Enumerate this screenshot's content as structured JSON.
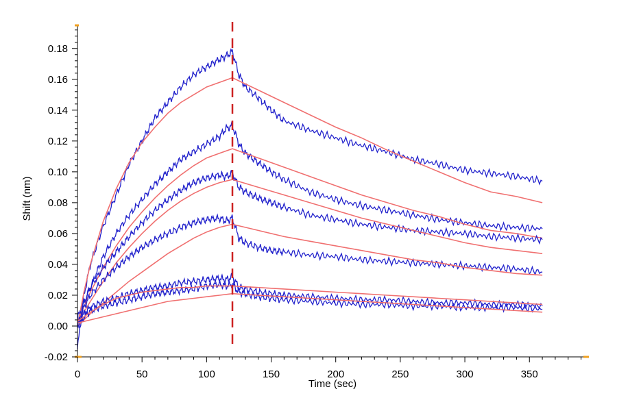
{
  "chart_data": {
    "type": "line",
    "title": "",
    "xlabel": "Time (sec)",
    "ylabel": "Shift (nm)",
    "xlim": [
      0,
      395
    ],
    "ylim": [
      -0.02,
      0.195
    ],
    "x_ticks": [
      0,
      50,
      100,
      150,
      200,
      250,
      300,
      350
    ],
    "y_ticks": [
      -0.02,
      0.0,
      0.02,
      0.04,
      0.06,
      0.08,
      0.1,
      0.12,
      0.14,
      0.16,
      0.18
    ],
    "x_tick_labels": [
      "0",
      "50",
      "100",
      "150",
      "200",
      "250",
      "300",
      "350"
    ],
    "y_tick_labels": [
      "-0.02",
      "0.00",
      "0.02",
      "0.04",
      "0.06",
      "0.08",
      "0.10",
      "0.12",
      "0.14",
      "0.16",
      "0.18"
    ],
    "grid": false,
    "association_end_time": 120,
    "colors": {
      "measured": "#2222cc",
      "fit": "#f07070",
      "marker_line": "#cc2222",
      "axis_caps": "#f0a020"
    },
    "series": [
      {
        "kind": "measured",
        "x": [
          0,
          5,
          10,
          20,
          30,
          40,
          50,
          60,
          70,
          80,
          90,
          100,
          110,
          115,
          120,
          125,
          130,
          140,
          150,
          160,
          180,
          200,
          220,
          240,
          260,
          280,
          300,
          320,
          340,
          360
        ],
        "y": [
          -0.015,
          0.02,
          0.04,
          0.065,
          0.085,
          0.105,
          0.12,
          0.135,
          0.145,
          0.155,
          0.163,
          0.168,
          0.173,
          0.175,
          0.178,
          0.163,
          0.155,
          0.148,
          0.14,
          0.133,
          0.127,
          0.122,
          0.117,
          0.113,
          0.108,
          0.105,
          0.101,
          0.099,
          0.097,
          0.094
        ]
      },
      {
        "kind": "fit",
        "x": [
          0,
          5,
          10,
          20,
          30,
          40,
          50,
          60,
          70,
          80,
          90,
          100,
          110,
          120,
          140,
          160,
          180,
          200,
          220,
          240,
          260,
          280,
          300,
          320,
          340,
          360
        ],
        "y": [
          0.0,
          0.022,
          0.04,
          0.068,
          0.089,
          0.106,
          0.119,
          0.129,
          0.138,
          0.145,
          0.15,
          0.155,
          0.158,
          0.161,
          0.153,
          0.145,
          0.137,
          0.129,
          0.122,
          0.114,
          0.107,
          0.1,
          0.093,
          0.087,
          0.084,
          0.08
        ]
      },
      {
        "kind": "measured",
        "x": [
          0,
          5,
          10,
          20,
          30,
          40,
          50,
          60,
          70,
          80,
          90,
          100,
          110,
          115,
          120,
          125,
          130,
          140,
          150,
          160,
          180,
          200,
          220,
          240,
          260,
          280,
          300,
          320,
          340,
          360
        ],
        "y": [
          0.0,
          0.015,
          0.025,
          0.045,
          0.06,
          0.072,
          0.082,
          0.092,
          0.1,
          0.108,
          0.113,
          0.118,
          0.123,
          0.128,
          0.13,
          0.118,
          0.112,
          0.106,
          0.1,
          0.095,
          0.087,
          0.082,
          0.078,
          0.075,
          0.072,
          0.069,
          0.067,
          0.065,
          0.064,
          0.063
        ]
      },
      {
        "kind": "fit",
        "x": [
          0,
          10,
          20,
          30,
          40,
          50,
          60,
          70,
          80,
          90,
          100,
          110,
          120,
          140,
          160,
          180,
          200,
          220,
          240,
          260,
          280,
          300,
          320,
          340,
          360
        ],
        "y": [
          0.003,
          0.022,
          0.038,
          0.052,
          0.064,
          0.074,
          0.083,
          0.091,
          0.098,
          0.104,
          0.109,
          0.112,
          0.115,
          0.109,
          0.103,
          0.097,
          0.091,
          0.085,
          0.08,
          0.075,
          0.071,
          0.066,
          0.062,
          0.06,
          0.057
        ]
      },
      {
        "kind": "measured",
        "x": [
          0,
          5,
          10,
          20,
          30,
          40,
          50,
          60,
          70,
          80,
          90,
          100,
          110,
          115,
          120,
          125,
          130,
          140,
          150,
          160,
          180,
          200,
          220,
          240,
          260,
          280,
          300,
          320,
          340,
          360
        ],
        "y": [
          0.005,
          0.015,
          0.025,
          0.038,
          0.048,
          0.058,
          0.067,
          0.075,
          0.082,
          0.088,
          0.093,
          0.096,
          0.098,
          0.097,
          0.099,
          0.09,
          0.087,
          0.083,
          0.08,
          0.077,
          0.072,
          0.069,
          0.066,
          0.064,
          0.062,
          0.061,
          0.06,
          0.058,
          0.057,
          0.056
        ]
      },
      {
        "kind": "fit",
        "x": [
          0,
          10,
          20,
          30,
          40,
          50,
          60,
          70,
          80,
          90,
          100,
          110,
          120,
          140,
          160,
          180,
          200,
          220,
          240,
          260,
          280,
          300,
          320,
          340,
          360
        ],
        "y": [
          0.002,
          0.016,
          0.029,
          0.041,
          0.051,
          0.06,
          0.068,
          0.075,
          0.081,
          0.086,
          0.09,
          0.093,
          0.095,
          0.09,
          0.085,
          0.08,
          0.075,
          0.07,
          0.066,
          0.062,
          0.058,
          0.054,
          0.051,
          0.049,
          0.047
        ]
      },
      {
        "kind": "measured",
        "x": [
          0,
          5,
          10,
          20,
          30,
          40,
          50,
          60,
          70,
          80,
          90,
          100,
          110,
          115,
          120,
          125,
          130,
          140,
          150,
          160,
          180,
          200,
          220,
          240,
          260,
          280,
          300,
          320,
          340,
          360
        ],
        "y": [
          0.0,
          0.012,
          0.02,
          0.03,
          0.038,
          0.045,
          0.051,
          0.056,
          0.06,
          0.064,
          0.067,
          0.069,
          0.07,
          0.068,
          0.07,
          0.057,
          0.054,
          0.051,
          0.049,
          0.048,
          0.046,
          0.045,
          0.043,
          0.042,
          0.041,
          0.04,
          0.039,
          0.038,
          0.037,
          0.035
        ]
      },
      {
        "kind": "fit",
        "x": [
          0,
          10,
          20,
          30,
          40,
          50,
          60,
          70,
          80,
          90,
          100,
          110,
          120,
          140,
          160,
          180,
          200,
          220,
          240,
          260,
          280,
          300,
          320,
          340,
          360
        ],
        "y": [
          0.0,
          0.008,
          0.015,
          0.022,
          0.029,
          0.035,
          0.041,
          0.047,
          0.052,
          0.057,
          0.061,
          0.064,
          0.066,
          0.062,
          0.058,
          0.055,
          0.052,
          0.049,
          0.046,
          0.043,
          0.041,
          0.038,
          0.036,
          0.034,
          0.033
        ]
      },
      {
        "kind": "measured",
        "x": [
          0,
          5,
          10,
          20,
          30,
          40,
          50,
          60,
          70,
          80,
          90,
          100,
          110,
          115,
          120,
          125,
          130,
          140,
          150,
          160,
          180,
          200,
          220,
          240,
          260,
          280,
          300,
          320,
          340,
          360
        ],
        "y": [
          0.0,
          0.008,
          0.012,
          0.016,
          0.018,
          0.021,
          0.023,
          0.025,
          0.026,
          0.028,
          0.029,
          0.03,
          0.031,
          0.03,
          0.032,
          0.025,
          0.024,
          0.022,
          0.021,
          0.02,
          0.019,
          0.018,
          0.017,
          0.017,
          0.016,
          0.015,
          0.015,
          0.014,
          0.014,
          0.013
        ]
      },
      {
        "kind": "measured",
        "x": [
          0,
          5,
          10,
          20,
          30,
          40,
          50,
          60,
          70,
          80,
          90,
          100,
          110,
          115,
          120,
          125,
          130,
          140,
          150,
          160,
          180,
          200,
          220,
          240,
          260,
          280,
          300,
          320,
          340,
          360
        ],
        "y": [
          0.0,
          0.006,
          0.01,
          0.013,
          0.015,
          0.017,
          0.019,
          0.021,
          0.022,
          0.023,
          0.024,
          0.026,
          0.027,
          0.026,
          0.027,
          0.022,
          0.021,
          0.019,
          0.018,
          0.017,
          0.016,
          0.015,
          0.014,
          0.014,
          0.013,
          0.013,
          0.012,
          0.012,
          0.012,
          0.011
        ]
      },
      {
        "kind": "fit",
        "x": [
          0,
          10,
          20,
          30,
          40,
          50,
          60,
          70,
          80,
          90,
          100,
          110,
          120,
          140,
          160,
          180,
          200,
          220,
          240,
          260,
          280,
          300,
          320,
          340,
          360
        ],
        "y": [
          0.003,
          0.009,
          0.014,
          0.018,
          0.02,
          0.022,
          0.023,
          0.024,
          0.025,
          0.025,
          0.026,
          0.026,
          0.026,
          0.025,
          0.024,
          0.023,
          0.022,
          0.021,
          0.02,
          0.019,
          0.018,
          0.017,
          0.016,
          0.015,
          0.014
        ]
      },
      {
        "kind": "fit",
        "x": [
          0,
          10,
          20,
          30,
          40,
          50,
          60,
          70,
          80,
          90,
          100,
          110,
          120,
          140,
          160,
          180,
          200,
          220,
          240,
          260,
          280,
          300,
          320,
          340,
          360
        ],
        "y": [
          0.002,
          0.004,
          0.006,
          0.008,
          0.01,
          0.012,
          0.014,
          0.016,
          0.017,
          0.018,
          0.019,
          0.02,
          0.021,
          0.02,
          0.019,
          0.018,
          0.017,
          0.016,
          0.015,
          0.014,
          0.013,
          0.012,
          0.011,
          0.01,
          0.009
        ]
      }
    ]
  }
}
